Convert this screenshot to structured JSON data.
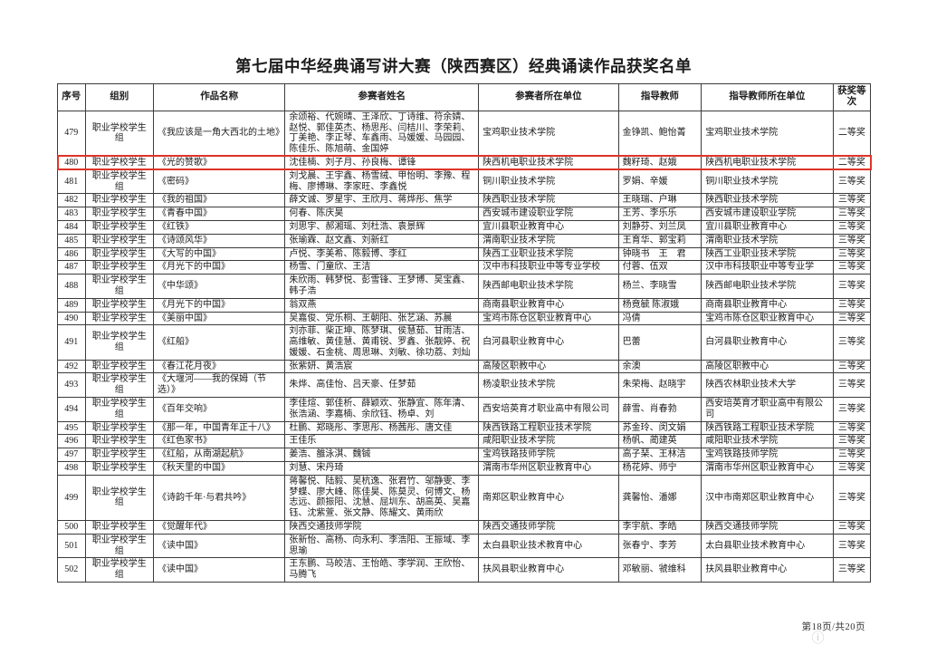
{
  "page": {
    "title": "第七届中华经典诵写讲大赛（陕西赛区）经典诵读作品获奖名单",
    "footer": {
      "page_indicator": "第18页/共20页"
    },
    "icons": {
      "info_icon": "ⓘ"
    },
    "colors": {
      "highlight_box": "#df342a",
      "table_border": "#3c3c3c"
    }
  },
  "table": {
    "headers": [
      "序号",
      "组别",
      "作品名称",
      "参赛者姓名",
      "参赛者所在单位",
      "指导教师",
      "指导教师所在单位",
      "获奖等次"
    ],
    "column_keys": [
      "no",
      "group",
      "work",
      "names",
      "unit",
      "teachers",
      "teacher_unit",
      "award"
    ],
    "rows": [
      {
        "no": "479",
        "group": "职业学校学生组",
        "work": "《我应该是一角大西北的土地》",
        "names": "余颂裕、代婉晴、王泽欣、丁诗维、符余婧、赵悦、郭佳英杰、杨思彤、闫桔川、李荣莉、丁美艳、李正琴、车鑫雨、马媛媛、马园园、陈佳乐、陈旭萌、金国婷",
        "unit": "宝鸡职业技术学院",
        "teachers": "金铮凯、鲍怡菁",
        "teacher_unit": "宝鸡职业技术学院",
        "award": "二等奖",
        "highlight": false
      },
      {
        "no": "480",
        "group": "职业学校学生",
        "work": "《光的赞歌》",
        "names": "沈佳楠、刘子月、孙良梅、谭锋",
        "unit": "陕西机电职业技术学院",
        "teachers": "魏籽琦、赵娥",
        "teacher_unit": "陕西机电职业技术学院",
        "award": "二等奖",
        "highlight": true
      },
      {
        "no": "481",
        "group": "职业学校学生组",
        "work": "《密码》",
        "names": "刘戈晨、王宇鑫、杨雪绒、甲怡明、李豫、程梅、廖博琳、李家旺、李鑫悦",
        "unit": "铜川职业技术学院",
        "teachers": "罗娟、辛媛",
        "teacher_unit": "铜川职业技术学院",
        "award": "三等奖",
        "highlight": false
      },
      {
        "no": "482",
        "group": "职业学校学生",
        "work": "《我的祖国》",
        "names": "薛文诚、罗星宇、王欣月、蒋烨彤、焦学",
        "unit": "陕西职业技术学院",
        "teachers": "王晓瑞、户琳",
        "teacher_unit": "陕西职业技术学院",
        "award": "三等奖",
        "highlight": false
      },
      {
        "no": "483",
        "group": "职业学校学生",
        "work": "《青春中国》",
        "names": "何春、陈庆昊",
        "unit": "西安城市建设职业学院",
        "teachers": "王芳、李乐乐",
        "teacher_unit": "西安城市建设职业学院",
        "award": "三等奖",
        "highlight": false
      },
      {
        "no": "484",
        "group": "职业学校学生",
        "work": "《红铁》",
        "names": "刘思宇、郝湘瑶、刘杜浩、袁景辉",
        "unit": "宜川县职业教育中心",
        "teachers": "刘静芬、刘兰凤",
        "teacher_unit": "宜川县职业教育中心",
        "award": "三等奖",
        "highlight": false
      },
      {
        "no": "485",
        "group": "职业学校学生",
        "work": "《诗颂风华》",
        "names": "张瑜霖、赵文鑫、刘新红",
        "unit": "渭南职业技术学院",
        "teachers": "王育华、郭宝莉",
        "teacher_unit": "渭南职业技术学院",
        "award": "三等奖",
        "highlight": false
      },
      {
        "no": "486",
        "group": "职业学校学生",
        "work": "《大写的中国》",
        "names": "卢悦、李美希、陈毅博、李红",
        "unit": "陕西工业职业技术学院",
        "teachers": "钟晓书　王　君",
        "teacher_unit": "陕西工业职业技术学院",
        "award": "三等奖",
        "highlight": false
      },
      {
        "no": "487",
        "group": "职业学校学生",
        "work": "《月光下的中国》",
        "names": "杨雪、门童欣、王洁",
        "unit": "汉中市科技职业中等专业学校",
        "teachers": "付蓉、伍双",
        "teacher_unit": "汉中市科技职业中等专业学",
        "award": "三等奖",
        "highlight": false
      },
      {
        "no": "488",
        "group": "职业学校学生组",
        "work": "《中华颂》",
        "names": "朱欣雨、韩梦悦、彭雪锋、王梦博、吴宝鑫、韩子浩",
        "unit": "陕西邮电职业技术学院",
        "teachers": "杨兰、李晓雪",
        "teacher_unit": "陕西邮电职业技术学院",
        "award": "三等奖",
        "highlight": false
      },
      {
        "no": "489",
        "group": "职业学校学生",
        "work": "《月光下的中国》",
        "names": "翁双燕",
        "unit": "商南县职业教育中心",
        "teachers": "杨竟毓 陈淑娥",
        "teacher_unit": "商南县职业教育中心",
        "award": "三等奖",
        "highlight": false
      },
      {
        "no": "490",
        "group": "职业学校学生",
        "work": "《美丽中国》",
        "names": "吴嘉俊、党乐桐、王朝阳、张艺涵、苏晨",
        "unit": "宝鸡市陈仓区职业教育中心",
        "teachers": "冯倩",
        "teacher_unit": "宝鸡市陈仓区职业教育中心",
        "award": "三等奖",
        "highlight": false
      },
      {
        "no": "491",
        "group": "职业学校学生组",
        "work": "《红船》",
        "names": "刘亦菲、柴正坤、陈梦琪、侯慧茹、甘雨洁、高维敏、黄佳慧、黄甫锐、罗鑫、张靓婷、祝媛媛、石金桃、周思琳、刘敏、徐功荔、刘灿",
        "unit": "白河县职业教育中心",
        "teachers": "巴蕾",
        "teacher_unit": "白河县职业教育中心",
        "award": "三等奖",
        "highlight": false
      },
      {
        "no": "492",
        "group": "职业学校学生",
        "work": "《春江花月夜》",
        "names": "张紫妍、黄浩宸",
        "unit": "高陵区职教中心",
        "teachers": "余澳",
        "teacher_unit": "高陵区职教中心",
        "award": "三等奖",
        "highlight": false
      },
      {
        "no": "493",
        "group": "职业学校学生组",
        "work": "《大堰河——我的保姆（节选）》",
        "names": "朱烨、高佳怡、吕天豪、任梦茹",
        "unit": "杨凌职业技术学院",
        "teachers": "朱荣梅、赵晓宇",
        "teacher_unit": "陕西农林职业技术大学",
        "award": "三等奖",
        "highlight": false
      },
      {
        "no": "494",
        "group": "职业学校学生组",
        "work": "《百年交响》",
        "names": "李佳煊、郭佳析、薛颖欢、张静宜、陈年清、张浩涵、李嘉楠、余欣钰、杨卓、刘",
        "unit": "西安培英育才职业高中有限公司",
        "teachers": "薛雪、肖春勃",
        "teacher_unit": "西安培英育才职业高中有限公司",
        "award": "三等奖",
        "highlight": false
      },
      {
        "no": "495",
        "group": "职业学校学生",
        "work": "《那一年，中国青年正十八》",
        "names": "杜鹏、郑晓彤、李思彤、杨茜彤、唐文佳",
        "unit": "陕西铁路工程职业技术学院",
        "teachers": "苏金玲、闵文娟",
        "teacher_unit": "陕西铁路工程职业技术学院",
        "award": "三等奖",
        "highlight": false
      },
      {
        "no": "496",
        "group": "职业学校学生",
        "work": "《红色家书》",
        "names": "王佳乐",
        "unit": "咸阳职业技术学院",
        "teachers": "杨帆、蔺建英",
        "teacher_unit": "咸阳职业技术学院",
        "award": "三等奖",
        "highlight": false
      },
      {
        "no": "497",
        "group": "职业学校学生",
        "work": "《红船，从南湖起航》",
        "names": "姜浩、雒泳淇、魏铖",
        "unit": "宝鸡铁路技师学院",
        "teachers": "高子琹、王林洁",
        "teacher_unit": "宝鸡铁路技师学院",
        "award": "三等奖",
        "highlight": false
      },
      {
        "no": "498",
        "group": "职业学校学生",
        "work": "《秋天里的中国》",
        "names": "刘慧、宋丹琦",
        "unit": "渭南市华州区职业教育中心",
        "teachers": "杨花婷、师宁",
        "teacher_unit": "渭南市华州区职业教育中心",
        "award": "三等奖",
        "highlight": false
      },
      {
        "no": "499",
        "group": "职业学校学生组",
        "work": "《诗韵千年·与君共吟》",
        "names": "蒋馨悦、陆毅、吴杭逸、张君竹、邬静雯、李梦蝶、廖大峰、陈佳昊、陈莫灵、何博文、杨志远、颜振阳、沈慧、屈圳东、胡高英、吴嘉钰、沈紫萱、张文静、陈耀文、黄雨欣",
        "unit": "南郑区职业教育中心",
        "teachers": "龚馨怡、潘娜",
        "teacher_unit": "汉中市南郑区职业教育中心",
        "award": "三等奖",
        "highlight": false
      },
      {
        "no": "500",
        "group": "职业学校学生",
        "work": "《觉醒年代》",
        "names": "陕西交通技师学院",
        "unit": "陕西交通技师学院",
        "teachers": "李宇航、李皓",
        "teacher_unit": "陕西交通技师学院",
        "award": "三等奖",
        "highlight": false
      },
      {
        "no": "501",
        "group": "职业学校学生组",
        "work": "《读中国》",
        "names": "张新怡、高杨、向永利、李浩阳、王振域、李思瑜",
        "unit": "太白县职业技术教育中心",
        "teachers": "张春宁、李芳",
        "teacher_unit": "太白县职业技术教育中心",
        "award": "三等奖",
        "highlight": false
      },
      {
        "no": "502",
        "group": "职业学校学生组",
        "work": "《读中国》",
        "names": "王东鹏、马皎洁、王怡皓、李学润、王欣怡、马腾飞",
        "unit": "扶风县职业教育中心",
        "teachers": "邓敏丽、虢维科",
        "teacher_unit": "扶风县职业教育中心",
        "award": "三等奖",
        "highlight": false
      }
    ]
  }
}
